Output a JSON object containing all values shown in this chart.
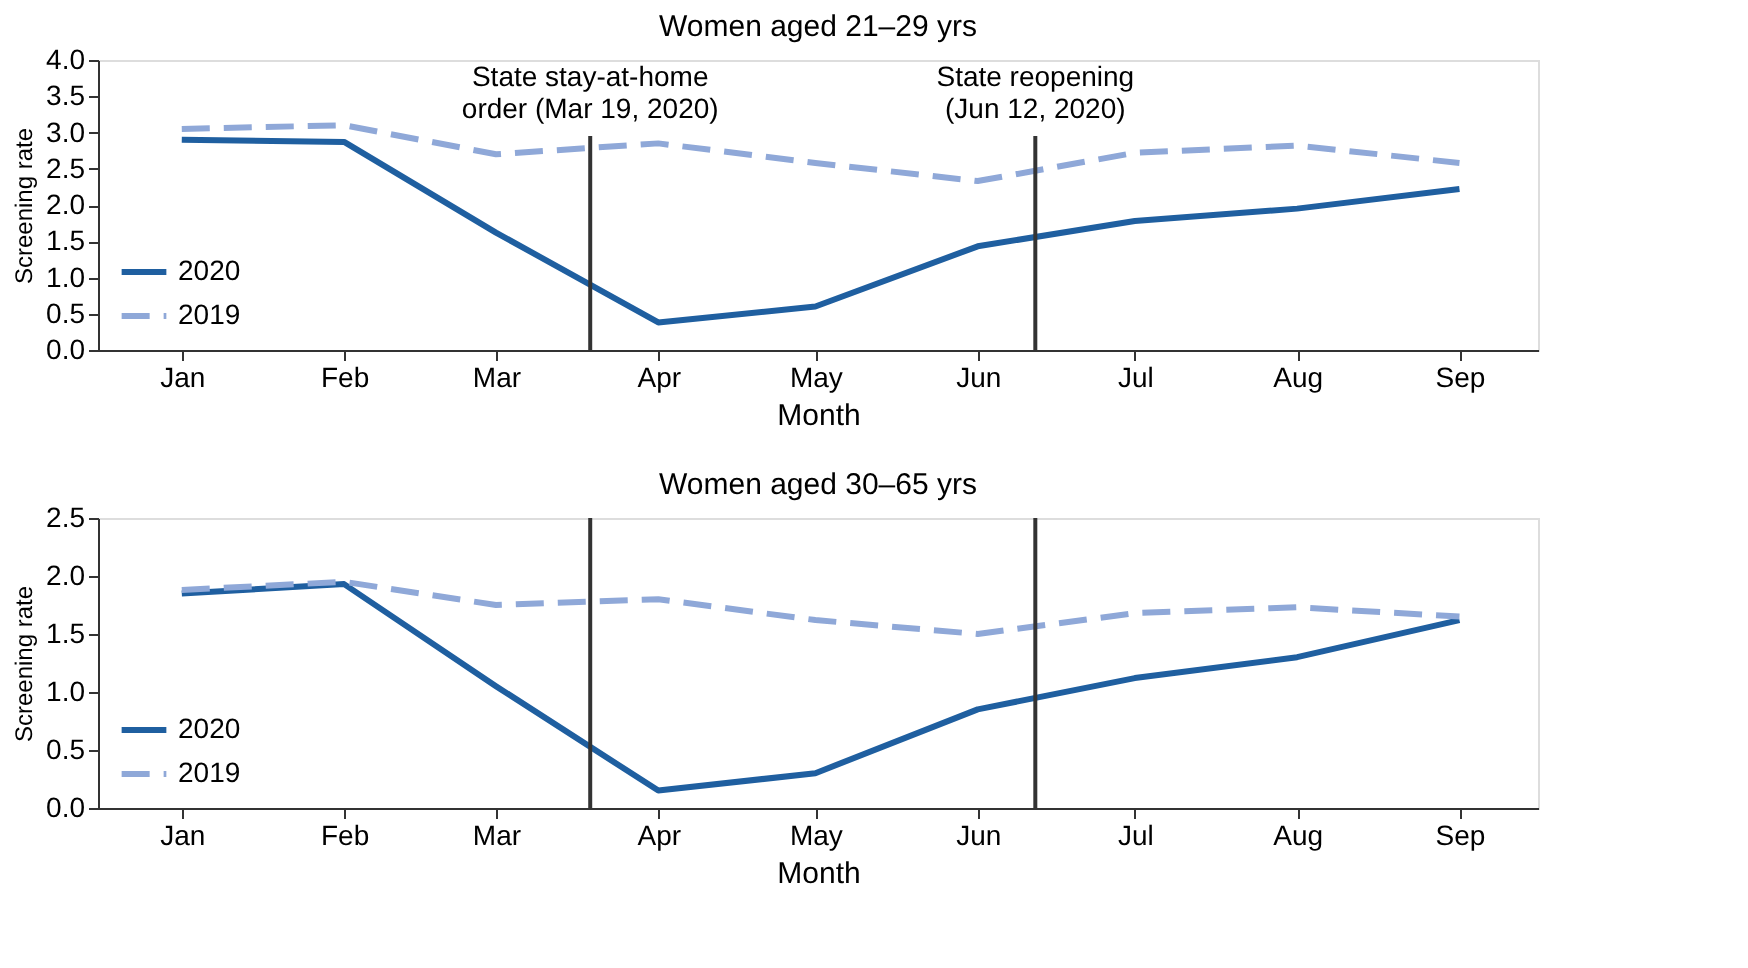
{
  "chart_data": [
    {
      "type": "line",
      "title": "Women aged 21–29 yrs",
      "xlabel": "Month",
      "ylabel": "Screening rate",
      "grid": false,
      "legend": "bottom left",
      "x": [
        "2020-01-01",
        "2020-02-01",
        "2020-03-01",
        "2020-04-01",
        "2020-05-01",
        "2020-06-01",
        "2020-07-01",
        "2020-08-01",
        "2020-09-01"
      ],
      "xlim": [
        "2019-12-16",
        "2020-09-16"
      ],
      "xticks": [
        {
          "value": "2020-01-01",
          "label": "Jan"
        },
        {
          "value": "2020-02-01",
          "label": "Feb"
        },
        {
          "value": "2020-03-01",
          "label": "Mar"
        },
        {
          "value": "2020-04-01",
          "label": "Apr"
        },
        {
          "value": "2020-05-01",
          "label": "May"
        },
        {
          "value": "2020-06-01",
          "label": "Jun"
        },
        {
          "value": "2020-07-01",
          "label": "Jul"
        },
        {
          "value": "2020-08-01",
          "label": "Aug"
        },
        {
          "value": "2020-09-01",
          "label": "Sep"
        }
      ],
      "ylim": [
        0,
        4
      ],
      "yticks": [
        {
          "value": 0,
          "label": "0.0"
        },
        {
          "value": 0.5,
          "label": "0.5"
        },
        {
          "value": 1,
          "label": "1.0"
        },
        {
          "value": 1.5,
          "label": "1.5"
        },
        {
          "value": 2,
          "label": "2.0"
        },
        {
          "value": 2.5,
          "label": "2.5"
        },
        {
          "value": 3,
          "label": "3.0"
        },
        {
          "value": 3.5,
          "label": "3.5"
        },
        {
          "value": 4,
          "label": "4.0"
        }
      ],
      "series": [
        {
          "name": "2020",
          "color": "#1f5fa0",
          "line_style": "solid",
          "values": [
            2.9,
            2.87,
            1.62,
            0.38,
            0.6,
            1.43,
            1.78,
            1.95,
            2.22
          ]
        },
        {
          "name": "2019",
          "color": "#8fa8d8",
          "line_style": "dashed",
          "values": [
            3.05,
            3.1,
            2.7,
            2.85,
            2.58,
            2.33,
            2.72,
            2.82,
            2.58
          ]
        }
      ],
      "ref_lines": [
        {
          "axis": "x",
          "value": "2020-03-19",
          "label": "State stay-at-home\norder (Mar 19, 2020)",
          "color": "#333333"
        },
        {
          "axis": "x",
          "value": "2020-06-12",
          "label": "State reopening\n(Jun 12, 2020)",
          "color": "#333333"
        }
      ]
    },
    {
      "type": "line",
      "title": "Women aged 30–65 yrs",
      "xlabel": "Month",
      "ylabel": "Screening rate",
      "grid": false,
      "legend": "bottom left",
      "x": [
        "2020-01-01",
        "2020-02-01",
        "2020-03-01",
        "2020-04-01",
        "2020-05-01",
        "2020-06-01",
        "2020-07-01",
        "2020-08-01",
        "2020-09-01"
      ],
      "xlim": [
        "2019-12-16",
        "2020-09-16"
      ],
      "xticks": [
        {
          "value": "2020-01-01",
          "label": "Jan"
        },
        {
          "value": "2020-02-01",
          "label": "Feb"
        },
        {
          "value": "2020-03-01",
          "label": "Mar"
        },
        {
          "value": "2020-04-01",
          "label": "Apr"
        },
        {
          "value": "2020-05-01",
          "label": "May"
        },
        {
          "value": "2020-06-01",
          "label": "Jun"
        },
        {
          "value": "2020-07-01",
          "label": "Jul"
        },
        {
          "value": "2020-08-01",
          "label": "Aug"
        },
        {
          "value": "2020-09-01",
          "label": "Sep"
        }
      ],
      "ylim": [
        0,
        2.5
      ],
      "yticks": [
        {
          "value": 0,
          "label": "0.0"
        },
        {
          "value": 0.5,
          "label": "0.5"
        },
        {
          "value": 1,
          "label": "1.0"
        },
        {
          "value": 1.5,
          "label": "1.5"
        },
        {
          "value": 2,
          "label": "2.0"
        },
        {
          "value": 2.5,
          "label": "2.5"
        }
      ],
      "series": [
        {
          "name": "2020",
          "color": "#1f5fa0",
          "line_style": "solid",
          "values": [
            1.85,
            1.93,
            1.05,
            0.15,
            0.3,
            0.85,
            1.12,
            1.3,
            1.62
          ]
        },
        {
          "name": "2019",
          "color": "#8fa8d8",
          "line_style": "dashed",
          "values": [
            1.88,
            1.95,
            1.75,
            1.8,
            1.62,
            1.5,
            1.68,
            1.73,
            1.65
          ]
        }
      ],
      "ref_lines": [
        {
          "axis": "x",
          "value": "2020-03-19",
          "label": null,
          "color": "#333333"
        },
        {
          "axis": "x",
          "value": "2020-06-12",
          "label": null,
          "color": "#333333"
        }
      ]
    }
  ]
}
